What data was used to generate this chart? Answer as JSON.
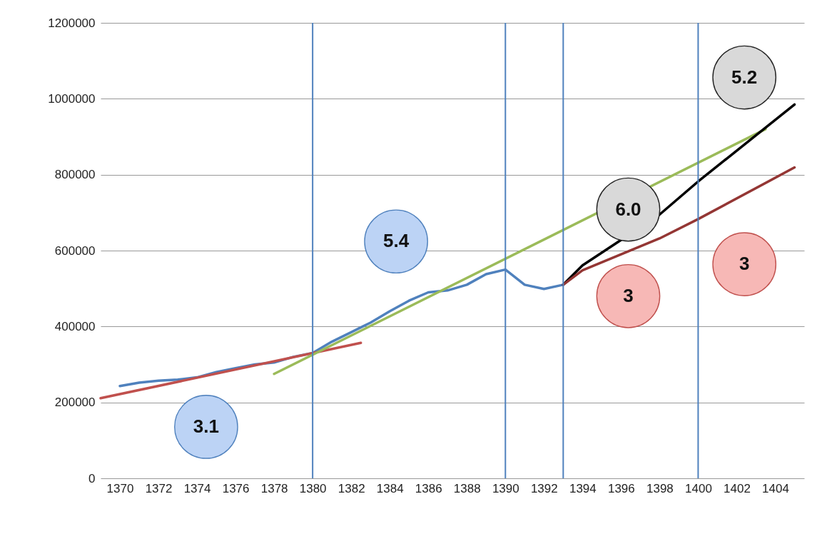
{
  "chart_data": {
    "type": "line",
    "grid": "y",
    "marker": "none",
    "line_style": "solid",
    "xlim": [
      1369,
      1405.5
    ],
    "xticks": [
      1370,
      1372,
      1374,
      1376,
      1378,
      1380,
      1382,
      1384,
      1386,
      1388,
      1390,
      1392,
      1394,
      1396,
      1398,
      1400,
      1402,
      1404
    ],
    "ylim": [
      0,
      1200000
    ],
    "yticks": [
      0,
      200000,
      400000,
      600000,
      800000,
      1000000,
      1200000
    ],
    "series": [
      {
        "color": "#4f81bd",
        "x": [
          1370,
          1371,
          1372,
          1373,
          1374,
          1375,
          1376,
          1377,
          1378,
          1379,
          1380,
          1381,
          1382,
          1383,
          1384,
          1385,
          1386,
          1387,
          1388,
          1389,
          1390,
          1391,
          1392,
          1393
        ],
        "values": [
          243000,
          252000,
          257000,
          260000,
          266000,
          280000,
          290000,
          300000,
          305000,
          320000,
          330000,
          360000,
          385000,
          410000,
          440000,
          468000,
          490000,
          495000,
          510000,
          538000,
          550000,
          510000,
          499000,
          510000
        ]
      },
      {
        "color": "#c0504d",
        "x": [
          1369,
          1382.5
        ],
        "values": [
          211000,
          357000
        ]
      },
      {
        "color": "#9bbb59",
        "x": [
          1378,
          1403.5
        ],
        "values": [
          275000,
          920000
        ]
      },
      {
        "color": "#000000",
        "x": [
          1393,
          1394,
          1398,
          1400,
          1405
        ],
        "values": [
          510000,
          561000,
          695000,
          782000,
          985000
        ]
      },
      {
        "color": "#943634",
        "x": [
          1393,
          1394,
          1398,
          1400,
          1405
        ],
        "values": [
          510000,
          548000,
          632000,
          683000,
          819000
        ]
      }
    ],
    "ref_lines": [
      {
        "axis": "x",
        "value": 1380,
        "color": "#4f81bd"
      },
      {
        "axis": "x",
        "value": 1390,
        "color": "#4f81bd"
      },
      {
        "axis": "x",
        "value": 1393,
        "color": "#4f81bd"
      },
      {
        "axis": "x",
        "value": 1400,
        "color": "#4f81bd"
      }
    ],
    "annotations": [
      "3.1",
      "5.4",
      "6.0",
      "3",
      "3",
      "5.2"
    ]
  }
}
